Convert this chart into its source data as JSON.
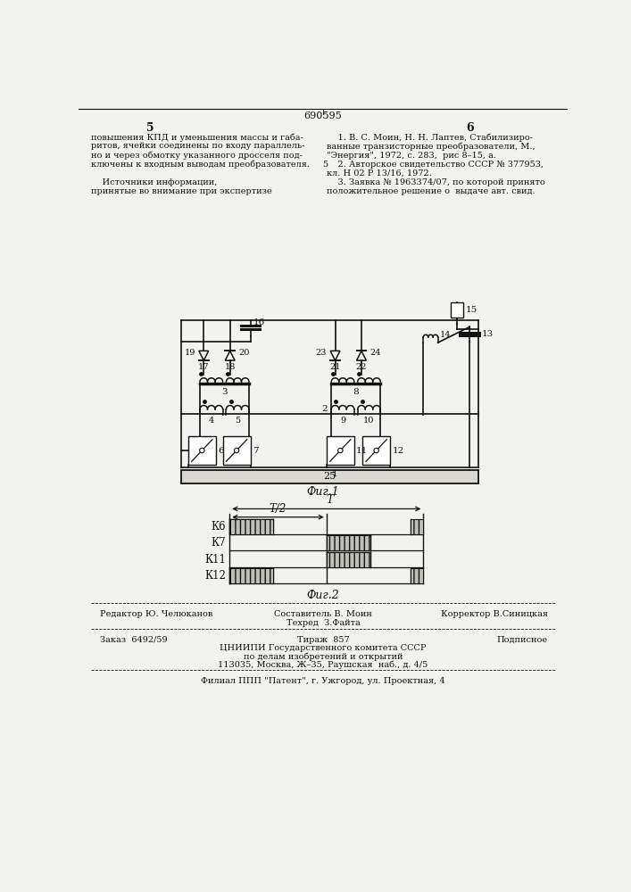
{
  "title_number": "690595",
  "page_left": "5",
  "page_right": "6",
  "text_left_col": [
    "повышения КПД и уменьшения массы и габа-",
    "ритов, ячейки соединены по входу параллель-",
    "но и через обмотку указанного дросселя под-",
    "ключены к входным выводам преобразователя.",
    "",
    "    Источники информации,",
    "принятые во внимание при экспертизе"
  ],
  "text_right_col": [
    "    1. В. С. Моин, Н. Н. Лаптев, Стабилизиро-",
    "ванные транзисторные преобразователи, М.,",
    "\"Энергия\", 1972, с. 283,  рис 8–15, а.",
    "    2. Авторское свидетельство СССР № 377953,",
    "кл. Н 02 Р 13/16, 1972.",
    "    3. Заявка № 1963374/07, по которой принято",
    "положительное решение о  выдаче авт. свид."
  ],
  "fig1_label": "Фиг.1",
  "fig2_label": "Фиг.2",
  "footer_editor": "Редактор Ю. Челюканов",
  "footer_composer": "Составитель В. Моин",
  "footer_tech": "Техред  З.Файта",
  "footer_corrector": "Корректор В.Синицкая",
  "footer_order": "Заказ  6492/59",
  "footer_print": "Тираж  857",
  "footer_signed": "Подписное",
  "footer_org": "ЦНИИПИ Государственного комитета СССР",
  "footer_org2": "по делам изобретений и открытий",
  "footer_address": "113035, Москва, Ж–35, Раушская  наб., д. 4/5",
  "footer_filial": "Филиал ППП \"Патент\", г. Ужгород, ул. Проектная, 4",
  "bg_color": "#f2f2ee",
  "text_color": "#111111",
  "line_color": "#111111"
}
